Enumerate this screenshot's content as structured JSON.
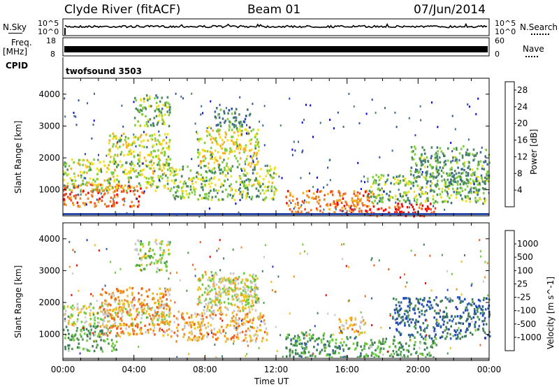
{
  "header": {
    "station": "Clyde River (fitACF)",
    "beam": "Beam 01",
    "date": "07/Jun/2014"
  },
  "top_panels": {
    "nsky_label": "N.Sky",
    "nsearch_label": "N.Search",
    "noise_tick_hi": "10^5",
    "noise_tick_lo": "10^0",
    "freq_label": "Freq.",
    "freq_unit": "[MHz]",
    "freq_tick_hi": "18",
    "freq_tick_lo": "8",
    "nave_label": "Nave",
    "nave_tick_hi": "60",
    "nave_tick_lo": "0",
    "cpid_label": "CPID",
    "cpid_value": "twofsound 3503",
    "colors": {
      "nsky": "#000000",
      "nsearch": "#000000",
      "freq": "#000000",
      "nave": "#000000"
    }
  },
  "chart_data": [
    {
      "type": "heatmap",
      "title": "",
      "ylabel": "Slant Range [km]",
      "xlabel": "",
      "x_ticks": [
        "00:00",
        "04:00",
        "08:00",
        "12:00",
        "16:00",
        "20:00",
        "00:00"
      ],
      "y_ticks": [
        1000,
        2000,
        3000,
        4000
      ],
      "ylim": [
        180,
        4500
      ],
      "xlim_hours": [
        0,
        24
      ],
      "colorbar": {
        "label": "Power [dB]",
        "ticks": [
          4,
          8,
          12,
          16,
          20,
          24,
          28
        ],
        "range": [
          0,
          30
        ],
        "colors": [
          "#0000ff",
          "#2c4aa8",
          "#3e6e8a",
          "#4c8c5a",
          "#7fcf3a",
          "#f2e020",
          "#f5b020",
          "#f08020",
          "#f05020",
          "#ff0000"
        ]
      },
      "regions": [
        {
          "t0": 0.0,
          "t1": 4.5,
          "r0": 500,
          "r1": 1200,
          "level": 0.86
        },
        {
          "t0": 0.0,
          "t1": 6.0,
          "r0": 1000,
          "r1": 2000,
          "level": 0.5
        },
        {
          "t0": 2.5,
          "t1": 6.0,
          "r0": 2000,
          "r1": 2800,
          "level": 0.55
        },
        {
          "t0": 4.0,
          "t1": 6.0,
          "r0": 3000,
          "r1": 4000,
          "level": 0.4
        },
        {
          "t0": 6.0,
          "t1": 12.0,
          "r0": 700,
          "r1": 1800,
          "level": 0.45
        },
        {
          "t0": 7.5,
          "t1": 11.0,
          "r0": 1800,
          "r1": 3000,
          "level": 0.55
        },
        {
          "t0": 8.5,
          "t1": 10.5,
          "r0": 3000,
          "r1": 3600,
          "level": 0.3
        },
        {
          "t0": 12.5,
          "t1": 17.5,
          "r0": 250,
          "r1": 1000,
          "level": 0.8
        },
        {
          "t0": 17.0,
          "t1": 21.0,
          "r0": 200,
          "r1": 600,
          "level": 0.95
        },
        {
          "t0": 17.0,
          "t1": 24.0,
          "r0": 600,
          "r1": 1500,
          "level": 0.4
        },
        {
          "t0": 19.5,
          "t1": 24.0,
          "r0": 1200,
          "r1": 2400,
          "level": 0.35
        }
      ]
    },
    {
      "type": "heatmap",
      "title": "",
      "ylabel": "Slant Range [km]",
      "xlabel": "Time UT",
      "x_ticks": [
        "00:00",
        "04:00",
        "08:00",
        "12:00",
        "16:00",
        "20:00",
        "00:00"
      ],
      "y_ticks": [
        1000,
        2000,
        3000,
        4000
      ],
      "ylim": [
        180,
        4500
      ],
      "xlim_hours": [
        0,
        24
      ],
      "colorbar": {
        "label": "Velocity [m s^-1]",
        "ticks": [
          "1000",
          "500",
          "100",
          "25",
          "-25",
          "-100",
          "-500",
          "-1000"
        ],
        "colors": [
          "#2040c0",
          "#3060a8",
          "#3e7e5a",
          "#4c9c4a",
          "#6acf3a",
          "#c8c8c8",
          "#f0c020",
          "#f09020",
          "#f06020",
          "#ff0000"
        ]
      },
      "regions": [
        {
          "t0": 0.0,
          "t1": 3.0,
          "r0": 500,
          "r1": 1300,
          "level": 0.35
        },
        {
          "t0": 0.0,
          "t1": 6.0,
          "r0": 1300,
          "r1": 2000,
          "level": 0.55
        },
        {
          "t0": 2.0,
          "t1": 6.0,
          "r0": 1000,
          "r1": 2500,
          "level": 0.75
        },
        {
          "t0": 4.0,
          "t1": 6.0,
          "r0": 3000,
          "r1": 4000,
          "level": 0.5
        },
        {
          "t0": 6.0,
          "t1": 11.5,
          "r0": 800,
          "r1": 1700,
          "level": 0.72
        },
        {
          "t0": 7.5,
          "t1": 11.0,
          "r0": 1700,
          "r1": 3000,
          "level": 0.6
        },
        {
          "t0": 8.0,
          "t1": 11.0,
          "r0": 2000,
          "r1": 2800,
          "level": 0.55
        },
        {
          "t0": 12.5,
          "t1": 17.0,
          "r0": 300,
          "r1": 1100,
          "level": 0.3
        },
        {
          "t0": 17.0,
          "t1": 21.0,
          "r0": 300,
          "r1": 900,
          "level": 0.35
        },
        {
          "t0": 18.5,
          "t1": 24.0,
          "r0": 900,
          "r1": 2200,
          "level": 0.15
        },
        {
          "t0": 15.5,
          "t1": 17.0,
          "r0": 1000,
          "r1": 1600,
          "level": 0.68
        }
      ]
    }
  ]
}
